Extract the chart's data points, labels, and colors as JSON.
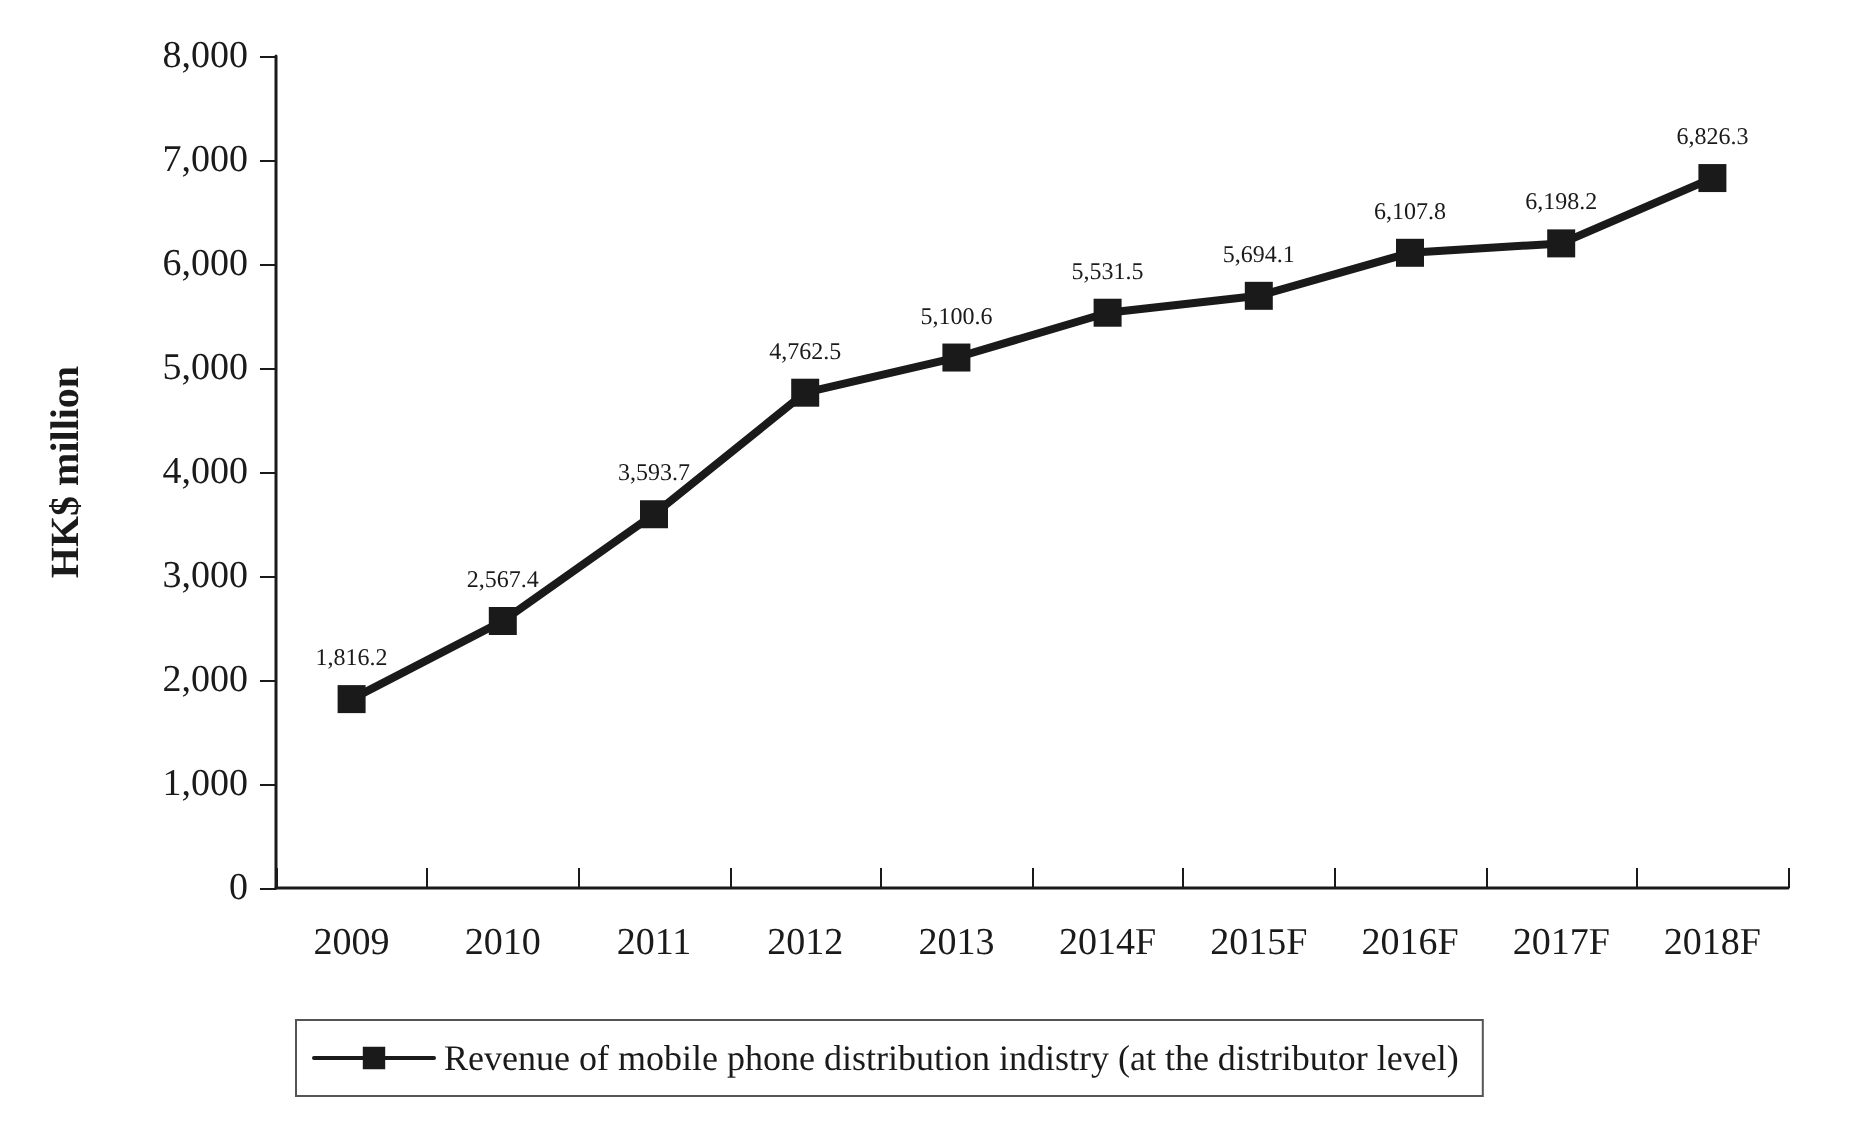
{
  "chart_data": {
    "type": "line",
    "ylabel": "HK$ million",
    "categories": [
      "2009",
      "2010",
      "2011",
      "2012",
      "2013",
      "2014F",
      "2015F",
      "2016F",
      "2017F",
      "2018F"
    ],
    "series": [
      {
        "name": "Revenue of mobile phone distribution indistry (at the distributor level)",
        "color": "#1a1a1a",
        "values": [
          1816.2,
          2567.4,
          3593.7,
          4762.5,
          5100.6,
          5531.5,
          5694.1,
          6107.8,
          6198.2,
          6826.3
        ],
        "value_labels": [
          "1,816.2",
          "2,567.4",
          "3,593.7",
          "4,762.5",
          "5,100.6",
          "5,531.5",
          "5,694.1",
          "6,107.8",
          "6,198.2",
          "6,826.3"
        ]
      }
    ],
    "ylim": [
      0,
      8000
    ],
    "yticks": [
      0,
      {
        "value": 1000,
        "label": "1,000"
      },
      {
        "value": 2000,
        "label": "2,000"
      },
      {
        "value": 3000,
        "label": "3,000"
      },
      {
        "value": 4000,
        "label": "4,000"
      },
      {
        "value": 5000,
        "label": "5,000"
      },
      {
        "value": 6000,
        "label": "6,000"
      },
      {
        "value": 7000,
        "label": "7,000"
      },
      {
        "value": 8000,
        "label": "8,000"
      }
    ],
    "grid": false,
    "legend": "bottom",
    "marker": "square",
    "line_style": "solid"
  }
}
